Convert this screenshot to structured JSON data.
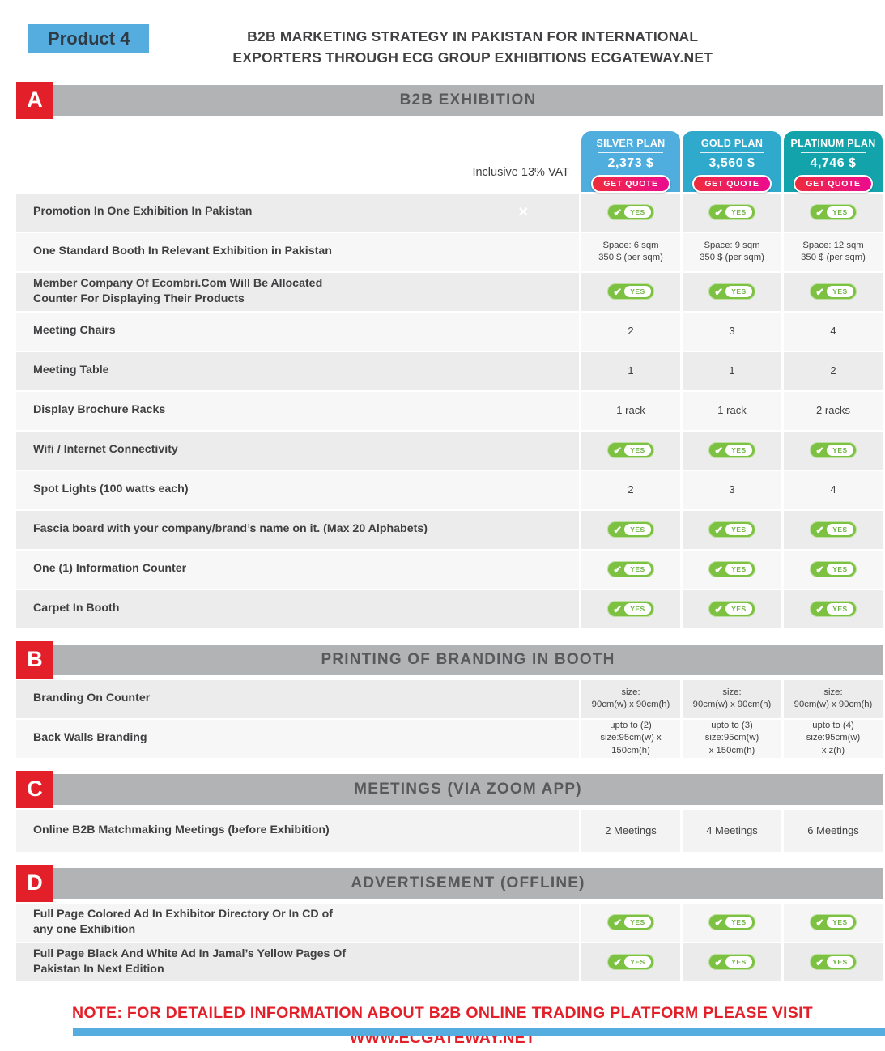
{
  "header": {
    "product_label": "Product 4",
    "title_line1": "B2B MARKETING STRATEGY IN PAKISTAN FOR INTERNATIONAL",
    "title_line2": "EXPORTERS THROUGH ECG GROUP EXHIBITIONS ECGATEWAY.NET"
  },
  "vat_note": "Inclusive 13% VAT",
  "icons": {
    "check": "✔",
    "x_mark": "✕"
  },
  "colors": {
    "accent_blue": "#55ACDF",
    "section_red": "#E3202A",
    "section_bar_gray": "#B1B3B5",
    "badge_green": "#7DC142",
    "cta_gradient_start": "#EE2C3C",
    "cta_gradient_end": "#EC0B8F",
    "footer_red": "#E3202A"
  },
  "plans": [
    {
      "name": "SILVER PLAN",
      "price": "2,373 $",
      "cta": "GET QUOTE",
      "color": "#4FAEDE"
    },
    {
      "name": "GOLD PLAN",
      "price": "3,560 $",
      "cta": "GET QUOTE",
      "color": "#2FA9CC"
    },
    {
      "name": "PLATINUM PLAN",
      "price": "4,746 $",
      "cta": "GET QUOTE",
      "color": "#13A4AB"
    }
  ],
  "sections": [
    {
      "letter": "A",
      "title": "B2B EXHIBITION",
      "rows": [
        {
          "label_lines": [
            "Promotion In One Exhibition In Pakistan"
          ],
          "x_mark": true,
          "cells": [
            {
              "yes": true
            },
            {
              "yes": true
            },
            {
              "yes": true
            }
          ]
        },
        {
          "label_lines": [
            "One Standard Booth In Relevant Exhibition in Pakistan"
          ],
          "cells": [
            {
              "lines": [
                "Space: 6 sqm",
                "350 $ (per sqm)"
              ]
            },
            {
              "lines": [
                "Space: 9 sqm",
                "350 $ (per sqm)"
              ]
            },
            {
              "lines": [
                "Space: 12 sqm",
                "350 $ (per sqm)"
              ]
            }
          ]
        },
        {
          "label_lines": [
            "Member Company Of Ecombri.Com Will Be Allocated",
            "Counter For Displaying Their Products"
          ],
          "cells": [
            {
              "yes": true
            },
            {
              "yes": true
            },
            {
              "yes": true
            }
          ]
        },
        {
          "label_lines": [
            "Meeting Chairs"
          ],
          "cells": [
            {
              "lines": [
                "2"
              ]
            },
            {
              "lines": [
                "3"
              ]
            },
            {
              "lines": [
                "4"
              ]
            }
          ]
        },
        {
          "label_lines": [
            "Meeting Table"
          ],
          "cells": [
            {
              "lines": [
                "1"
              ]
            },
            {
              "lines": [
                "1"
              ]
            },
            {
              "lines": [
                "2"
              ]
            }
          ]
        },
        {
          "label_lines": [
            "Display Brochure Racks"
          ],
          "cells": [
            {
              "lines": [
                "1 rack"
              ]
            },
            {
              "lines": [
                "1 rack"
              ]
            },
            {
              "lines": [
                "2 racks"
              ]
            }
          ]
        },
        {
          "label_lines": [
            "Wifi / Internet Connectivity"
          ],
          "cells": [
            {
              "yes": true
            },
            {
              "yes": true
            },
            {
              "yes": true
            }
          ]
        },
        {
          "label_lines": [
            "Spot Lights (100 watts each)"
          ],
          "cells": [
            {
              "lines": [
                "2"
              ]
            },
            {
              "lines": [
                "3"
              ]
            },
            {
              "lines": [
                "4"
              ]
            }
          ]
        },
        {
          "label_lines": [
            "Fascia board with your company/brand’s name on it. (Max 20 Alphabets)"
          ],
          "cells": [
            {
              "yes": true
            },
            {
              "yes": true
            },
            {
              "yes": true
            }
          ]
        },
        {
          "label_lines": [
            "One (1) Information Counter"
          ],
          "cells": [
            {
              "yes": true
            },
            {
              "yes": true
            },
            {
              "yes": true
            }
          ]
        },
        {
          "label_lines": [
            "Carpet In Booth"
          ],
          "cells": [
            {
              "yes": true
            },
            {
              "yes": true
            },
            {
              "yes": true
            }
          ]
        }
      ]
    },
    {
      "letter": "B",
      "title": "PRINTING OF BRANDING IN BOOTH",
      "rows": [
        {
          "label_lines": [
            "Branding On Counter"
          ],
          "cells": [
            {
              "lines": [
                "size:",
                "90cm(w) x 90cm(h)"
              ]
            },
            {
              "lines": [
                "size:",
                "90cm(w) x 90cm(h)"
              ]
            },
            {
              "lines": [
                "size:",
                "90cm(w) x 90cm(h)"
              ]
            }
          ]
        },
        {
          "label_lines": [
            "Back Walls Branding"
          ],
          "cells": [
            {
              "lines": [
                "upto to (2)",
                "size:95cm(w) x",
                "150cm(h)"
              ]
            },
            {
              "lines": [
                "upto to (3)",
                "size:95cm(w)",
                "x 150cm(h)"
              ]
            },
            {
              "lines": [
                "upto to (4)",
                "size:95cm(w)",
                "x z(h)"
              ]
            }
          ]
        }
      ]
    },
    {
      "letter": "C",
      "title": "MEETINGS (VIA ZOOM APP)",
      "rows": [
        {
          "label_lines": [
            "Online B2B Matchmaking Meetings (before Exhibition)"
          ],
          "cells": [
            {
              "lines": [
                "2 Meetings"
              ]
            },
            {
              "lines": [
                "4 Meetings"
              ]
            },
            {
              "lines": [
                "6 Meetings"
              ]
            }
          ]
        }
      ]
    },
    {
      "letter": "D",
      "title": "ADVERTISEMENT (OFFLINE)",
      "rows": [
        {
          "label_lines": [
            "Full Page Colored Ad In Exhibitor Directory Or In CD of",
            "any one Exhibition"
          ],
          "cells": [
            {
              "yes": true
            },
            {
              "yes": true
            },
            {
              "yes": true
            }
          ]
        },
        {
          "label_lines": [
            "Full Page Black And White Ad In Jamal’s Yellow Pages Of",
            "Pakistan In Next Edition"
          ],
          "cells": [
            {
              "yes": true
            },
            {
              "yes": true
            },
            {
              "yes": true
            }
          ]
        }
      ]
    }
  ],
  "footer": {
    "line1": "NOTE: FOR DETAILED INFORMATION ABOUT B2B ONLINE TRADING PLATFORM PLEASE VISIT",
    "line2": "WWW.ECGATEWAY.NET"
  }
}
